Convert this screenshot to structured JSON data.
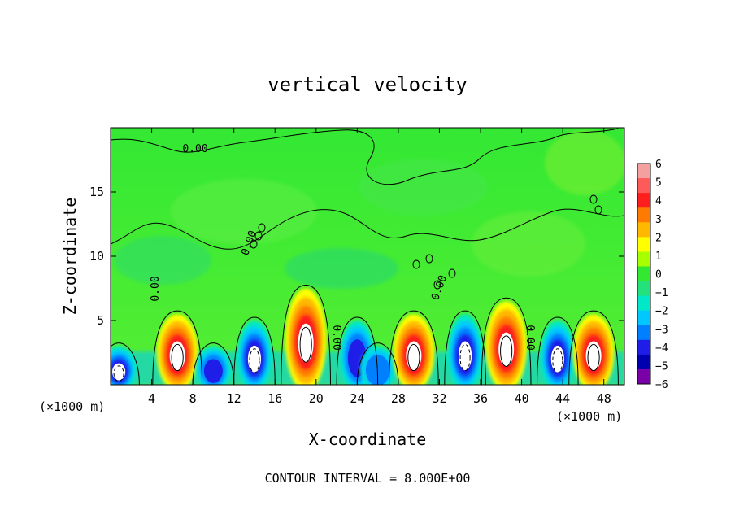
{
  "chart_data": {
    "type": "heatmap",
    "title": "vertical velocity",
    "xlabel": "X-coordinate",
    "ylabel": "Z-coordinate",
    "x_unit_label_left": "(×1000 m)",
    "x_unit_label_right": "(×1000 m)",
    "footer": "CONTOUR INTERVAL = 8.000E+00",
    "contour_label": "0.00",
    "xlim": [
      0,
      50
    ],
    "ylim": [
      0,
      20
    ],
    "x_ticks": [
      "4",
      "8",
      "12",
      "16",
      "20",
      "24",
      "28",
      "32",
      "36",
      "40",
      "44",
      "48"
    ],
    "y_ticks": [
      "5",
      "10",
      "15"
    ],
    "colorbar": {
      "ticks": [
        "6",
        "5",
        "4",
        "3",
        "2",
        "1",
        "0",
        "−1",
        "−2",
        "−3",
        "−4",
        "−5",
        "−6"
      ],
      "colors": [
        "#f4a0a0",
        "#ff5a5a",
        "#ff1e1e",
        "#ff7a00",
        "#ffb800",
        "#ffff00",
        "#a8ff00",
        "#33e833",
        "#22e07a",
        "#00e8c8",
        "#00c8ff",
        "#0080ff",
        "#1e1ee8",
        "#0000b0",
        "#7a00a8"
      ]
    },
    "cells": [
      {
        "x": 0.8,
        "polarity": "down",
        "intensity": 1.0,
        "height": 3.0
      },
      {
        "x": 6.5,
        "polarity": "up",
        "intensity": 1.0,
        "height": 5.5
      },
      {
        "x": 10.0,
        "polarity": "down",
        "intensity": 0.8,
        "height": 3.0
      },
      {
        "x": 14.0,
        "polarity": "down",
        "intensity": 0.9,
        "height": 5.0
      },
      {
        "x": 19.0,
        "polarity": "up",
        "intensity": 1.0,
        "height": 7.5
      },
      {
        "x": 24.0,
        "polarity": "down",
        "intensity": 0.8,
        "height": 5.0
      },
      {
        "x": 26.0,
        "polarity": "down",
        "intensity": 0.55,
        "height": 3.0
      },
      {
        "x": 29.5,
        "polarity": "up",
        "intensity": 1.0,
        "height": 5.5
      },
      {
        "x": 34.5,
        "polarity": "down",
        "intensity": 1.0,
        "height": 5.5
      },
      {
        "x": 38.5,
        "polarity": "up",
        "intensity": 1.0,
        "height": 6.5
      },
      {
        "x": 43.5,
        "polarity": "down",
        "intensity": 0.9,
        "height": 5.0
      },
      {
        "x": 47.0,
        "polarity": "up",
        "intensity": 0.9,
        "height": 5.5
      }
    ]
  }
}
